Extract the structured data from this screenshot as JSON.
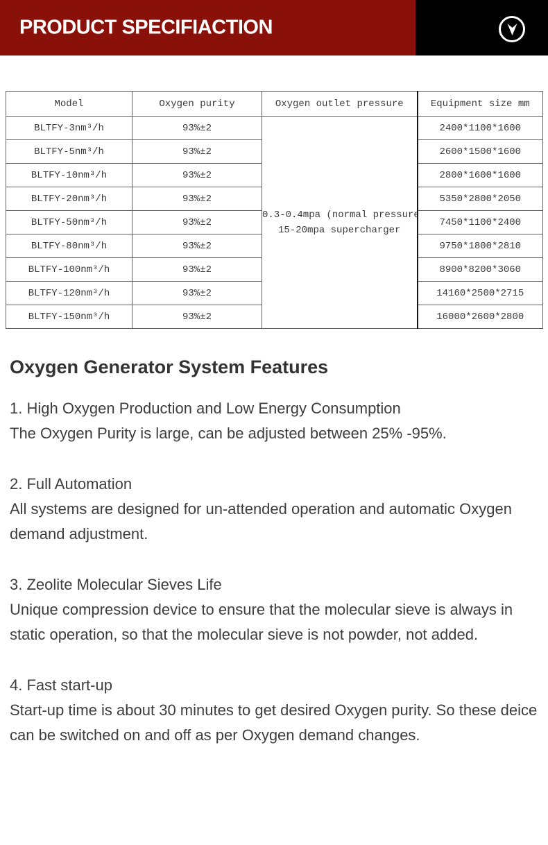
{
  "header": {
    "title": "PRODUCT SPECIFIACTION",
    "red_color": "#8a100a",
    "black_color": "#000000",
    "icon": "circle-down-arrow-icon"
  },
  "table": {
    "columns": [
      "Model",
      "Oxygen purity",
      "Oxygen outlet pressure",
      "Equipment size mm"
    ],
    "pressure_lines": [
      "0.3-0.4mpa (normal pressure)",
      "15-20mpa supercharger"
    ],
    "rows": [
      {
        "model": "BLTFY-3nm³/h",
        "purity": "93%±2",
        "size": "2400*1100*1600"
      },
      {
        "model": "BLTFY-5nm³/h",
        "purity": "93%±2",
        "size": "2600*1500*1600"
      },
      {
        "model": "BLTFY-10nm³/h",
        "purity": "93%±2",
        "size": "2800*1600*1600"
      },
      {
        "model": "BLTFY-20nm³/h",
        "purity": "93%±2",
        "size": "5350*2800*2050"
      },
      {
        "model": "BLTFY-50nm³/h",
        "purity": "93%±2",
        "size": "7450*1100*2400"
      },
      {
        "model": "BLTFY-80nm³/h",
        "purity": "93%±2",
        "size": "9750*1800*2810"
      },
      {
        "model": "BLTFY-100nm³/h",
        "purity": "93%±2",
        "size": "8900*8200*3060"
      },
      {
        "model": "BLTFY-120nm³/h",
        "purity": "93%±2",
        "size": "14160*2500*2715"
      },
      {
        "model": "BLTFY-150nm³/h",
        "purity": "93%±2",
        "size": "16000*2600*2800"
      }
    ]
  },
  "features": {
    "heading": "Oxygen Generator System Features",
    "items": [
      {
        "title": "1. High Oxygen Production and Low Energy Consumption",
        "body": "The Oxygen Purity is large, can be adjusted between 25% -95%."
      },
      {
        "title": "2. Full Automation",
        "body": "All systems are designed for un-attended operation and automatic Oxygen demand adjustment."
      },
      {
        "title": "3. Zeolite Molecular Sieves Life",
        "body": "Unique compression device to ensure that the molecular sieve is always in static operation, so that the molecular sieve is not powder, not added."
      },
      {
        "title": "4. Fast start-up",
        "body": "Start-up time is about 30 minutes to get desired Oxygen purity. So these deice can be switched on and off as per Oxygen demand changes."
      }
    ]
  }
}
